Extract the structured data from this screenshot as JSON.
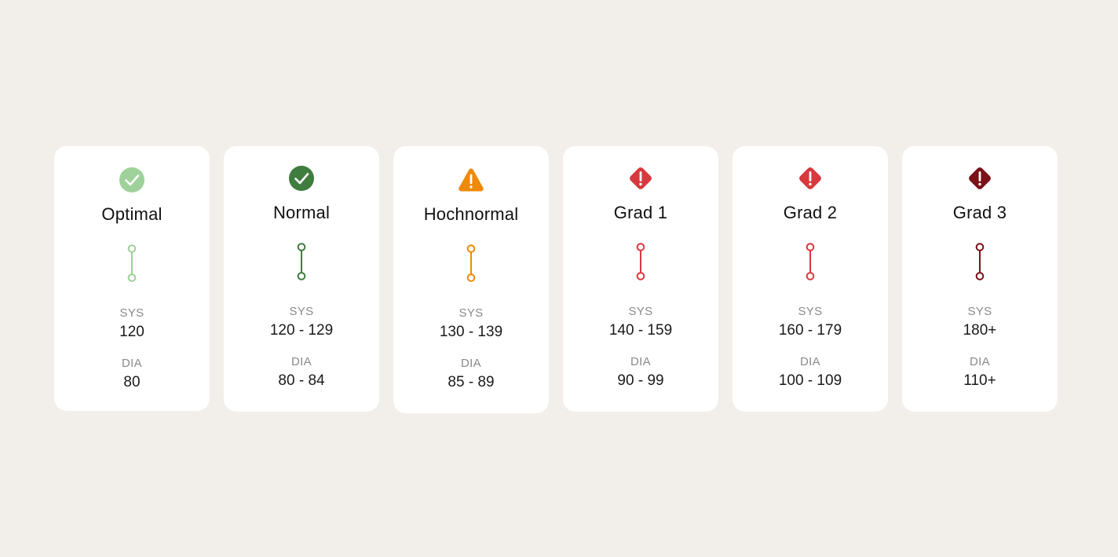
{
  "cards": [
    {
      "name": "optimal",
      "title": "Optimal",
      "status_icon": "check-circle-icon",
      "color": "#9fd19a",
      "sys_label": "SYS",
      "sys_value": "120",
      "dia_label": "DIA",
      "dia_value": "80"
    },
    {
      "name": "normal",
      "title": "Normal",
      "status_icon": "check-circle-icon",
      "color": "#3f7d3e",
      "sys_label": "SYS",
      "sys_value": "120 - 129",
      "dia_label": "DIA",
      "dia_value": "80 - 84"
    },
    {
      "name": "hochnormal",
      "title": "Hochnormal",
      "status_icon": "warning-triangle-icon",
      "color": "#ee8a0a",
      "sys_label": "SYS",
      "sys_value": "130 - 139",
      "dia_label": "DIA",
      "dia_value": "85 - 89"
    },
    {
      "name": "grad-1",
      "title": "Grad 1",
      "status_icon": "alert-diamond-icon",
      "color": "#d8393e",
      "sys_label": "SYS",
      "sys_value": "140 - 159",
      "dia_label": "DIA",
      "dia_value": "90 - 99"
    },
    {
      "name": "grad-2",
      "title": "Grad 2",
      "status_icon": "alert-diamond-icon",
      "color": "#d8393e",
      "sys_label": "SYS",
      "sys_value": "160 - 179",
      "dia_label": "DIA",
      "dia_value": "100 - 109"
    },
    {
      "name": "grad-3",
      "title": "Grad 3",
      "status_icon": "alert-diamond-icon",
      "color": "#7a1217",
      "sys_label": "SYS",
      "sys_value": "180+",
      "dia_label": "DIA",
      "dia_value": "110+"
    }
  ]
}
